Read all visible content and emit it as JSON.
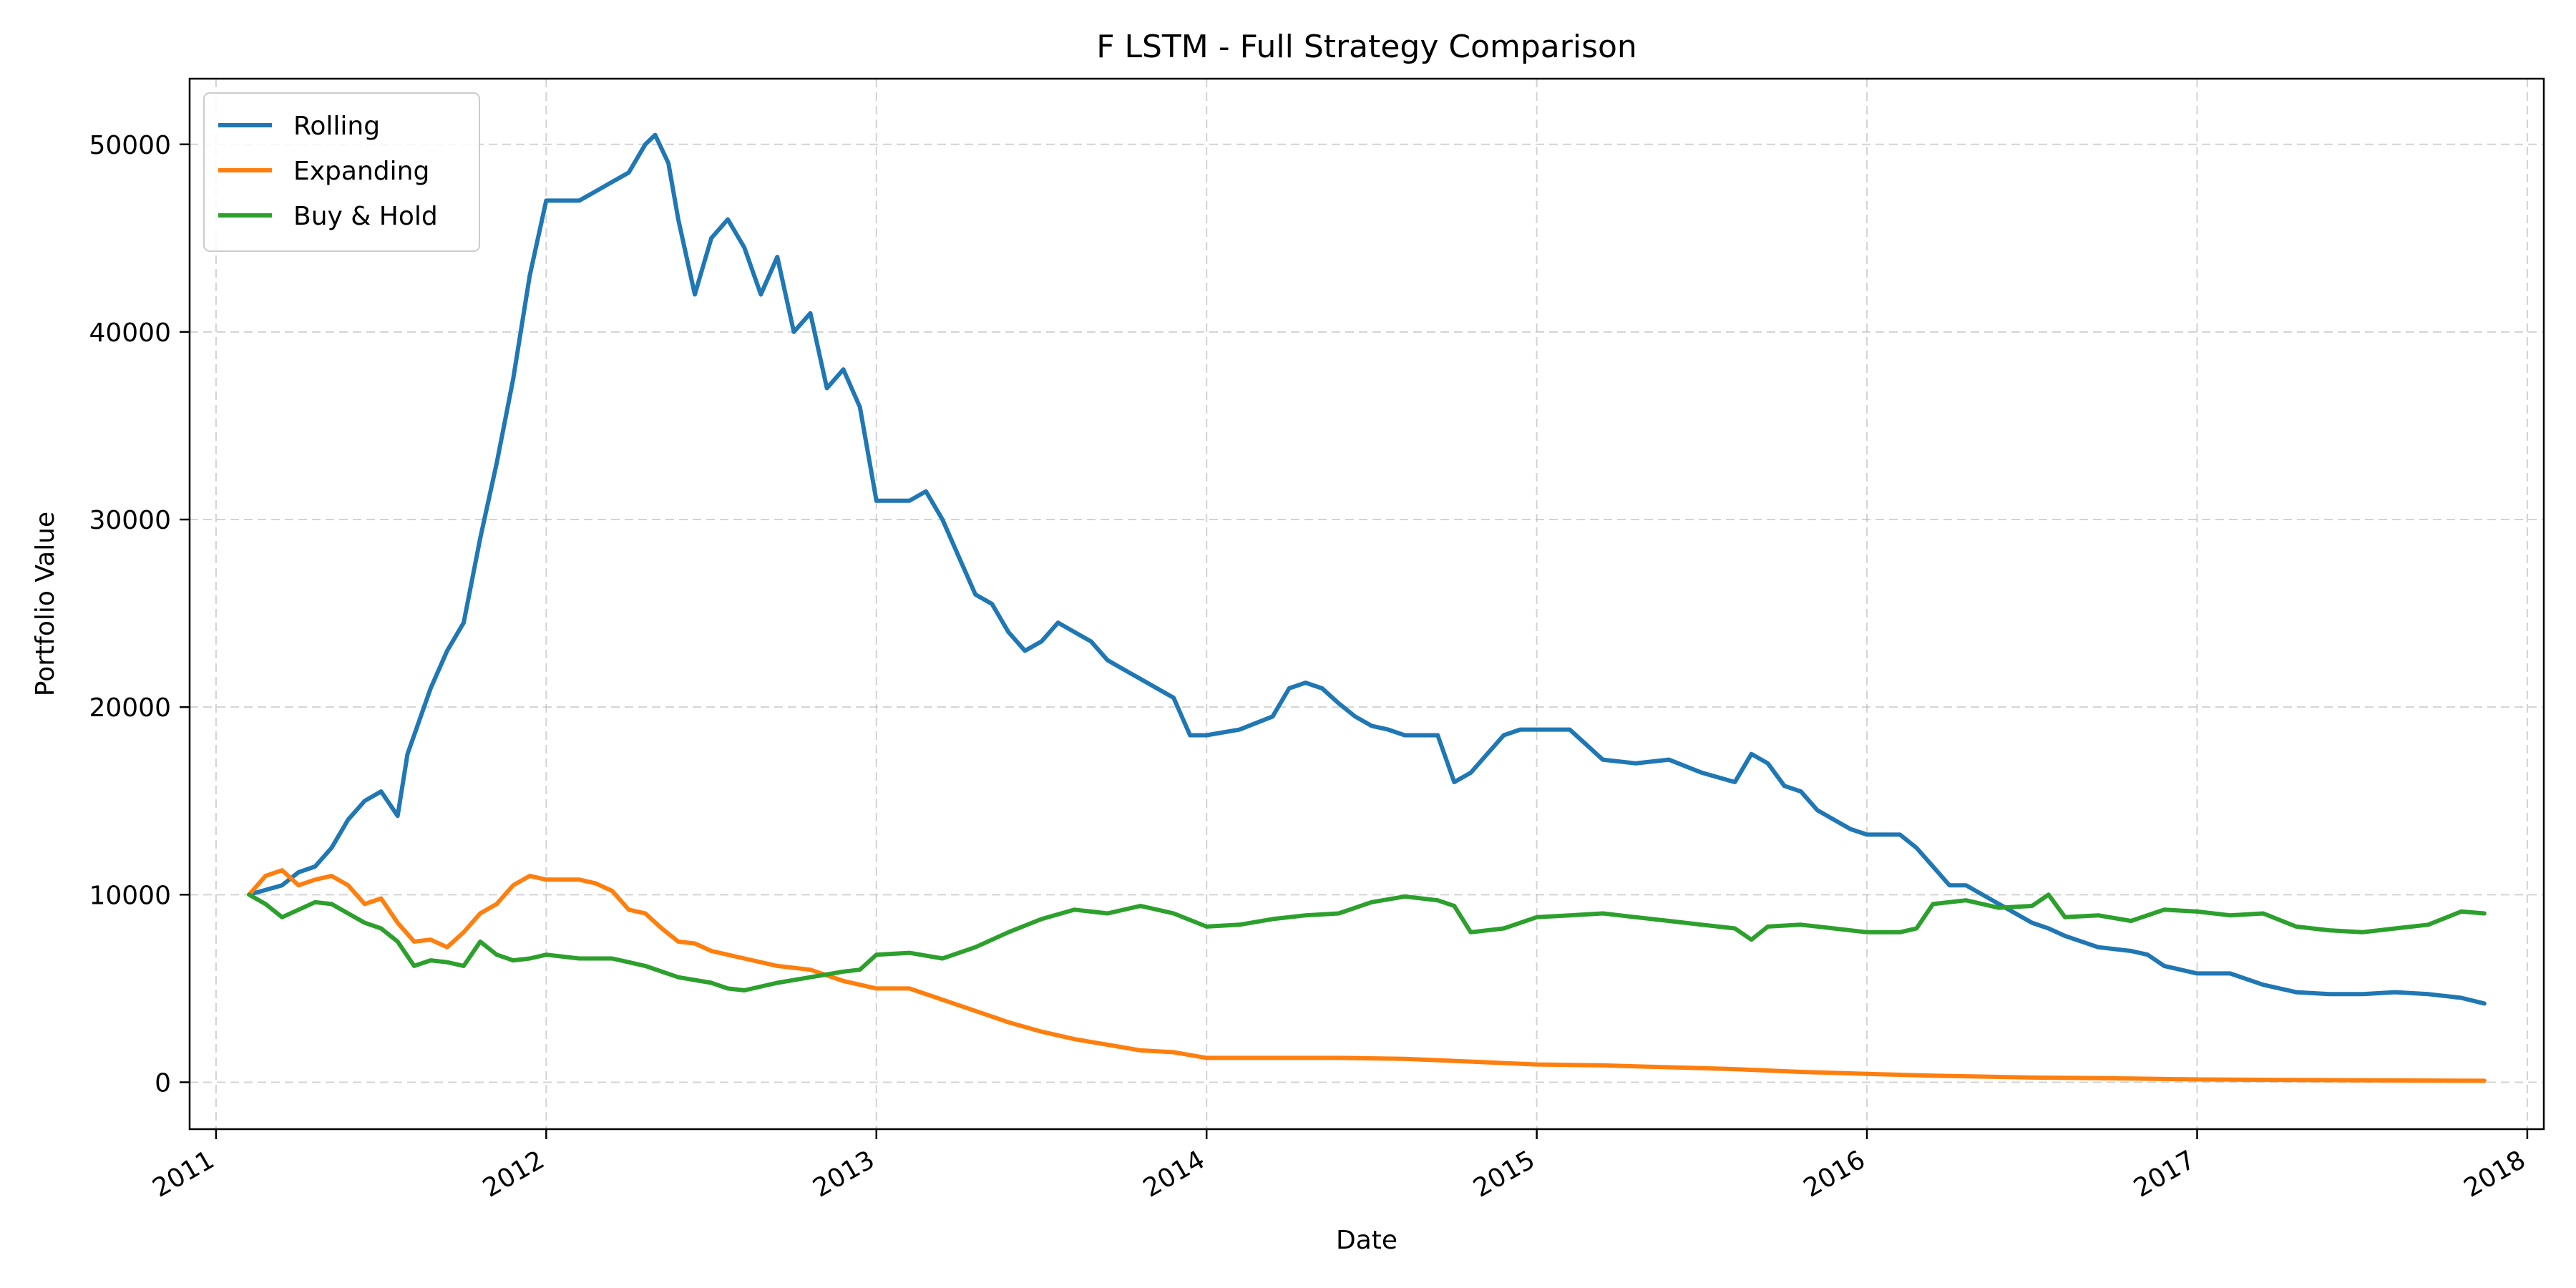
{
  "chart_data": {
    "type": "line",
    "title": "F LSTM - Full Strategy Comparison",
    "xlabel": "Date",
    "ylabel": "Portfolio Value",
    "xlim": [
      2010.92,
      2018.05
    ],
    "ylim": [
      -2500,
      53500
    ],
    "x_ticks": [
      2011,
      2012,
      2013,
      2014,
      2015,
      2016,
      2017,
      2018
    ],
    "x_tick_labels": [
      "2011",
      "2012",
      "2013",
      "2014",
      "2015",
      "2016",
      "2017",
      "2018"
    ],
    "y_ticks": [
      0,
      10000,
      20000,
      30000,
      40000,
      50000
    ],
    "y_tick_labels": [
      "0",
      "10000",
      "20000",
      "30000",
      "40000",
      "50000"
    ],
    "grid": true,
    "legend_position": "top-left",
    "series": [
      {
        "name": "Rolling",
        "color": "#1f77b4",
        "x": [
          2011.1,
          2011.2,
          2011.25,
          2011.3,
          2011.35,
          2011.4,
          2011.45,
          2011.5,
          2011.55,
          2011.58,
          2011.62,
          2011.65,
          2011.7,
          2011.75,
          2011.8,
          2011.85,
          2011.9,
          2011.95,
          2012.0,
          2012.05,
          2012.1,
          2012.15,
          2012.2,
          2012.25,
          2012.3,
          2012.33,
          2012.37,
          2012.4,
          2012.45,
          2012.5,
          2012.55,
          2012.6,
          2012.65,
          2012.7,
          2012.75,
          2012.8,
          2012.85,
          2012.9,
          2012.95,
          2013.0,
          2013.1,
          2013.15,
          2013.2,
          2013.25,
          2013.3,
          2013.35,
          2013.4,
          2013.45,
          2013.5,
          2013.55,
          2013.6,
          2013.65,
          2013.7,
          2013.75,
          2013.8,
          2013.85,
          2013.9,
          2013.95,
          2014.0,
          2014.1,
          2014.2,
          2014.25,
          2014.3,
          2014.35,
          2014.4,
          2014.45,
          2014.5,
          2014.55,
          2014.6,
          2014.7,
          2014.75,
          2014.8,
          2014.85,
          2014.9,
          2014.95,
          2015.0,
          2015.1,
          2015.15,
          2015.2,
          2015.3,
          2015.4,
          2015.5,
          2015.6,
          2015.65,
          2015.7,
          2015.75,
          2015.8,
          2015.85,
          2015.9,
          2015.95,
          2016.0,
          2016.05,
          2016.1,
          2016.15,
          2016.2,
          2016.25,
          2016.3,
          2016.35,
          2016.4,
          2016.45,
          2016.5,
          2016.55,
          2016.6,
          2016.7,
          2016.8,
          2016.85,
          2016.9,
          2017.0,
          2017.1,
          2017.15,
          2017.2,
          2017.3,
          2017.4,
          2017.5,
          2017.6,
          2017.7,
          2017.8,
          2017.87
        ],
        "values": [
          10000,
          10500,
          11200,
          11500,
          12500,
          14000,
          15000,
          15500,
          14200,
          17500,
          19500,
          21000,
          23000,
          24500,
          29000,
          33000,
          37500,
          43000,
          47000,
          47000,
          47000,
          47500,
          48000,
          48500,
          50000,
          50500,
          49000,
          46000,
          42000,
          45000,
          46000,
          44500,
          42000,
          44000,
          40000,
          41000,
          37000,
          38000,
          36000,
          31000,
          31000,
          31500,
          30000,
          28000,
          26000,
          25500,
          24000,
          23000,
          23500,
          24500,
          24000,
          23500,
          22500,
          22000,
          21500,
          21000,
          20500,
          18500,
          18500,
          18800,
          19500,
          21000,
          21300,
          21000,
          20200,
          19500,
          19000,
          18800,
          18500,
          18500,
          16000,
          16500,
          17500,
          18500,
          18800,
          18800,
          18800,
          18000,
          17200,
          17000,
          17200,
          16500,
          16000,
          17500,
          17000,
          15800,
          15500,
          14500,
          14000,
          13500,
          13200,
          13200,
          13200,
          12500,
          11500,
          10500,
          10500,
          10000,
          9500,
          9000,
          8500,
          8200,
          7800,
          7200,
          7000,
          6800,
          6200,
          5800,
          5800,
          5500,
          5200,
          4800,
          4700,
          4700,
          4800,
          4700,
          4500,
          4200
        ]
      },
      {
        "name": "Expanding",
        "color": "#ff7f0e",
        "x": [
          2011.1,
          2011.15,
          2011.2,
          2011.25,
          2011.3,
          2011.35,
          2011.4,
          2011.45,
          2011.5,
          2011.55,
          2011.6,
          2011.65,
          2011.7,
          2011.75,
          2011.8,
          2011.85,
          2011.9,
          2011.95,
          2012.0,
          2012.1,
          2012.15,
          2012.2,
          2012.25,
          2012.3,
          2012.35,
          2012.4,
          2012.45,
          2012.5,
          2012.6,
          2012.7,
          2012.8,
          2012.9,
          2013.0,
          2013.1,
          2013.2,
          2013.3,
          2013.4,
          2013.5,
          2013.6,
          2013.7,
          2013.8,
          2013.9,
          2014.0,
          2014.2,
          2014.4,
          2014.6,
          2014.8,
          2015.0,
          2015.2,
          2015.4,
          2015.6,
          2015.8,
          2016.0,
          2016.2,
          2016.5,
          2016.8,
          2017.0,
          2017.5,
          2017.87
        ],
        "values": [
          10000,
          11000,
          11300,
          10500,
          10800,
          11000,
          10500,
          9500,
          9800,
          8500,
          7500,
          7600,
          7200,
          8000,
          9000,
          9500,
          10500,
          11000,
          10800,
          10800,
          10600,
          10200,
          9200,
          9000,
          8200,
          7500,
          7400,
          7000,
          6600,
          6200,
          6000,
          5400,
          5000,
          5000,
          4400,
          3800,
          3200,
          2700,
          2300,
          2000,
          1700,
          1600,
          1300,
          1300,
          1300,
          1250,
          1100,
          950,
          900,
          800,
          700,
          550,
          450,
          350,
          250,
          200,
          150,
          100,
          80
        ]
      },
      {
        "name": "Buy & Hold",
        "color": "#2ca02c",
        "x": [
          2011.1,
          2011.15,
          2011.2,
          2011.25,
          2011.3,
          2011.35,
          2011.4,
          2011.45,
          2011.5,
          2011.55,
          2011.6,
          2011.65,
          2011.7,
          2011.75,
          2011.8,
          2011.85,
          2011.9,
          2011.95,
          2012.0,
          2012.1,
          2012.2,
          2012.3,
          2012.4,
          2012.5,
          2012.55,
          2012.6,
          2012.7,
          2012.8,
          2012.9,
          2012.95,
          2013.0,
          2013.1,
          2013.2,
          2013.3,
          2013.4,
          2013.5,
          2013.6,
          2013.7,
          2013.8,
          2013.9,
          2014.0,
          2014.1,
          2014.2,
          2014.3,
          2014.4,
          2014.5,
          2014.6,
          2014.7,
          2014.75,
          2014.8,
          2014.9,
          2015.0,
          2015.1,
          2015.2,
          2015.3,
          2015.4,
          2015.5,
          2015.6,
          2015.65,
          2015.7,
          2015.8,
          2015.9,
          2016.0,
          2016.1,
          2016.15,
          2016.2,
          2016.3,
          2016.4,
          2016.5,
          2016.55,
          2016.6,
          2016.7,
          2016.8,
          2016.9,
          2017.0,
          2017.1,
          2017.2,
          2017.3,
          2017.4,
          2017.5,
          2017.6,
          2017.7,
          2017.8,
          2017.87
        ],
        "values": [
          10000,
          9500,
          8800,
          9200,
          9600,
          9500,
          9000,
          8500,
          8200,
          7500,
          6200,
          6500,
          6400,
          6200,
          7500,
          6800,
          6500,
          6600,
          6800,
          6600,
          6600,
          6200,
          5600,
          5300,
          5000,
          4900,
          5300,
          5600,
          5900,
          6000,
          6800,
          6900,
          6600,
          7200,
          8000,
          8700,
          9200,
          9000,
          9400,
          9000,
          8300,
          8400,
          8700,
          8900,
          9000,
          9600,
          9900,
          9700,
          9400,
          8000,
          8200,
          8800,
          8900,
          9000,
          8800,
          8600,
          8400,
          8200,
          7600,
          8300,
          8400,
          8200,
          8000,
          8000,
          8200,
          9500,
          9700,
          9300,
          9400,
          10000,
          8800,
          8900,
          8600,
          9200,
          9100,
          8900,
          9000,
          8300,
          8100,
          8000,
          8200,
          8400,
          9100,
          9000
        ]
      }
    ]
  }
}
